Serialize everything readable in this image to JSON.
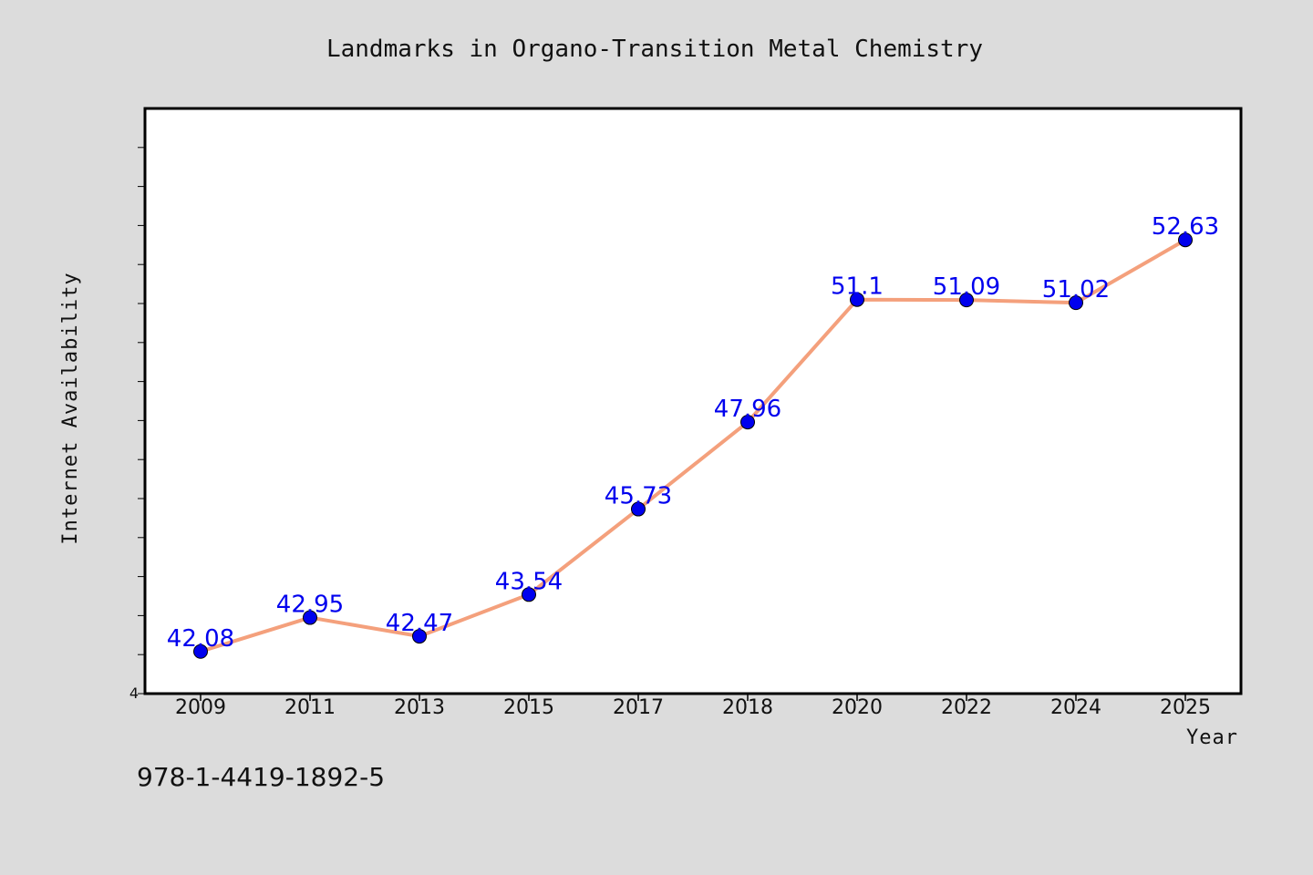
{
  "chart_data": {
    "type": "line",
    "title": "Landmarks in Organo-Transition Metal Chemistry",
    "xlabel": "Year",
    "ylabel": "Internet Availability",
    "categories": [
      "2009",
      "2011",
      "2013",
      "2015",
      "2017",
      "2018",
      "2020",
      "2022",
      "2024",
      "2025"
    ],
    "series": [
      {
        "values": [
          42.08,
          42.95,
          42.47,
          43.54,
          45.73,
          47.96,
          51.1,
          51.09,
          51.02,
          52.63
        ],
        "labels": [
          "42.08",
          "42.95",
          "42.47",
          "43.54",
          "45.73",
          "47.96",
          "51.1",
          "51.09",
          "51.02",
          "52.63"
        ]
      }
    ],
    "ylim": [
      41.0,
      56.0
    ],
    "y_tick_label": "4",
    "line_color": "#f4a07c",
    "marker_color": "#0000ee",
    "label_color": "#0000ee",
    "grid": false,
    "legend": "none"
  },
  "footer": {
    "isbn": "978-1-4419-1892-5"
  },
  "colors": {
    "background": "#dcdcdc",
    "plot_background": "#ffffff"
  }
}
